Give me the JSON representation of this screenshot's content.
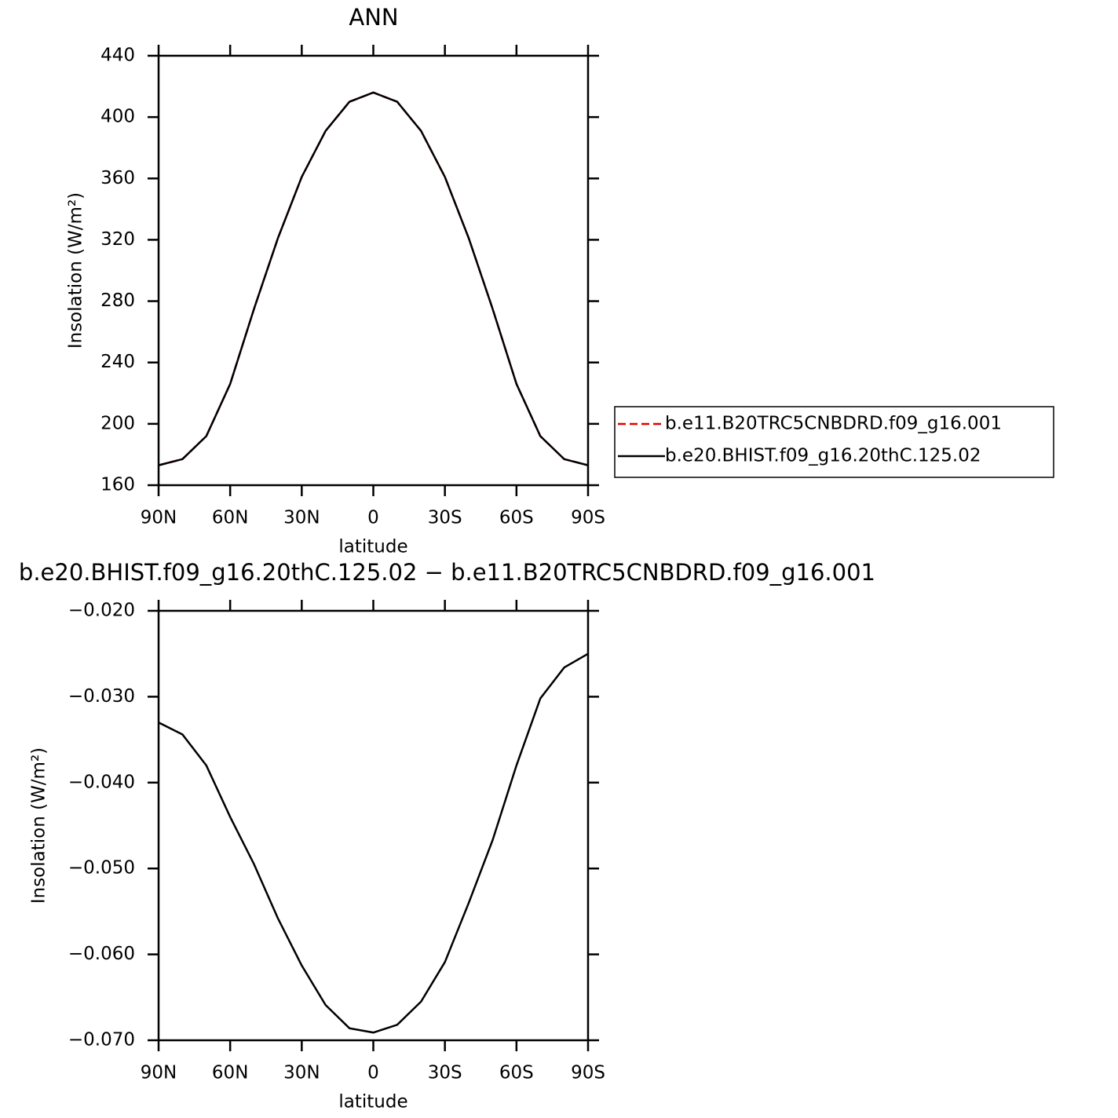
{
  "chart_data": [
    {
      "type": "line",
      "title": "ANN",
      "xlabel": "latitude",
      "ylabel": "Insolation  (W/m²)",
      "x": [
        90,
        80,
        70,
        60,
        50,
        40,
        30,
        20,
        10,
        0,
        -10,
        -20,
        -30,
        -40,
        -50,
        -60,
        -70,
        -80,
        -90
      ],
      "xlim": [
        90,
        -90
      ],
      "xticks": [
        {
          "value": 90,
          "label": "90N"
        },
        {
          "value": 60,
          "label": "60N"
        },
        {
          "value": 30,
          "label": "30N"
        },
        0,
        {
          "value": -30,
          "label": "30S"
        },
        {
          "value": -60,
          "label": "60S"
        },
        {
          "value": -90,
          "label": "90S"
        }
      ],
      "ylim": [
        160,
        440
      ],
      "yticks": [
        160,
        200,
        240,
        280,
        320,
        360,
        400,
        440
      ],
      "legend": "right",
      "series": [
        {
          "name": "b.e11.B20TRC5CNBDRD.f09_g16.001",
          "color": "#e00000",
          "style": "dashed",
          "values": [
            173,
            177,
            192,
            226,
            275,
            321,
            361,
            391,
            410,
            416,
            410,
            391,
            361,
            321,
            275,
            226,
            192,
            177,
            173
          ]
        },
        {
          "name": "b.e20.BHIST.f09_g16.20thC.125.02",
          "color": "#000000",
          "style": "solid",
          "values": [
            173,
            177,
            192,
            226,
            275,
            321,
            361,
            391,
            410,
            416,
            410,
            391,
            361,
            321,
            275,
            226,
            192,
            177,
            173
          ]
        }
      ]
    },
    {
      "type": "line",
      "title": "b.e20.BHIST.f09_g16.20thC.125.02 − b.e11.B20TRC5CNBDRD.f09_g16.001",
      "xlabel": "latitude",
      "ylabel": "Insolation  (W/m²)",
      "x": [
        90,
        80,
        70,
        60,
        50,
        40,
        30,
        20,
        10,
        0,
        -10,
        -20,
        -30,
        -40,
        -50,
        -60,
        -70,
        -80,
        -90
      ],
      "xlim": [
        90,
        -90
      ],
      "xticks": [
        {
          "value": 90,
          "label": "90N"
        },
        {
          "value": 60,
          "label": "60N"
        },
        {
          "value": 30,
          "label": "30N"
        },
        0,
        {
          "value": -30,
          "label": "30S"
        },
        {
          "value": -60,
          "label": "60S"
        },
        {
          "value": -90,
          "label": "90S"
        }
      ],
      "ylim": [
        -0.07,
        -0.02
      ],
      "yticks": [
        {
          "value": -0.07,
          "label": "−0.070"
        },
        {
          "value": -0.06,
          "label": "−0.060"
        },
        {
          "value": -0.05,
          "label": "−0.050"
        },
        {
          "value": -0.04,
          "label": "−0.040"
        },
        {
          "value": -0.03,
          "label": "−0.030"
        },
        {
          "value": -0.02,
          "label": "−0.020"
        }
      ],
      "color": "#000000",
      "values": [
        -0.033,
        -0.0344,
        -0.038,
        -0.044,
        -0.0495,
        -0.0558,
        -0.0613,
        -0.0659,
        -0.0686,
        -0.0691,
        -0.0682,
        -0.0655,
        -0.0609,
        -0.054,
        -0.0467,
        -0.038,
        -0.0302,
        -0.0266,
        -0.025
      ]
    }
  ]
}
